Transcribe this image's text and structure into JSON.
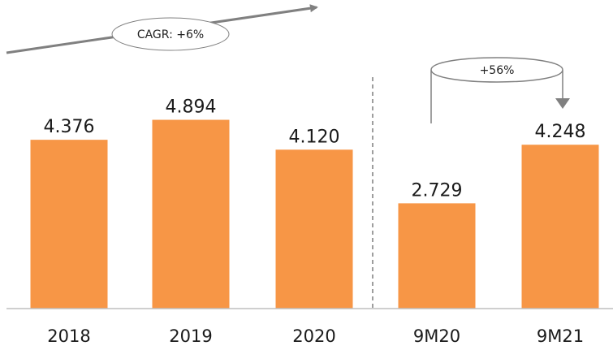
{
  "chart_data": {
    "type": "bar",
    "categories": [
      "2018",
      "2019",
      "2020",
      "9M20",
      "9M21"
    ],
    "values": [
      4.376,
      4.894,
      4.12,
      2.729,
      4.248
    ],
    "value_labels": [
      "4.376",
      "4.894",
      "4.120",
      "2.729",
      "4.248"
    ],
    "title": "",
    "xlabel": "",
    "ylabel": "",
    "ylim": [
      0,
      5.5
    ],
    "grid": false,
    "legend": "none",
    "bar_color": "#F79646",
    "annotations": {
      "cagr": "CAGR: +6%",
      "growth": "+56%"
    }
  }
}
